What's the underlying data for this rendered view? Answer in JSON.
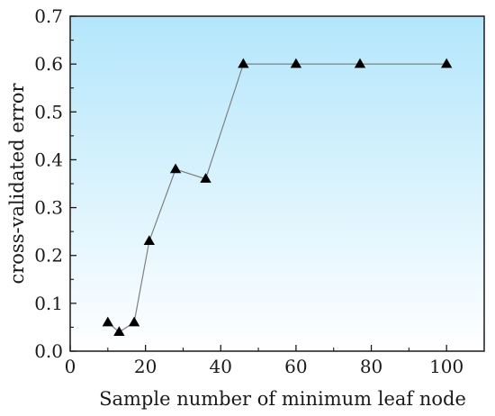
{
  "chart_data": {
    "type": "line",
    "title": "",
    "xlabel": "Sample number of minimum leaf node",
    "ylabel": "cross-validated error",
    "xlim": [
      0,
      110
    ],
    "ylim": [
      0.0,
      0.7
    ],
    "xticks": [
      0,
      20,
      40,
      60,
      80,
      100
    ],
    "yticks": [
      0.0,
      0.1,
      0.2,
      0.3,
      0.4,
      0.5,
      0.6,
      0.7
    ],
    "xtick_labels": [
      "0",
      "20",
      "40",
      "60",
      "80",
      "100"
    ],
    "ytick_labels": [
      "0.0",
      "0.1",
      "0.2",
      "0.3",
      "0.4",
      "0.5",
      "0.6",
      "0.7"
    ],
    "grid": false,
    "legend": "none",
    "background_gradient": [
      "#b3e6fb",
      "#ffffff"
    ],
    "line_color": "#808080",
    "marker": "triangle",
    "marker_color": "#000000",
    "series": [
      {
        "x": [
          10,
          13,
          17,
          21,
          28,
          36,
          46,
          60,
          77,
          100
        ],
        "y": [
          0.06,
          0.04,
          0.06,
          0.23,
          0.38,
          0.36,
          0.6,
          0.6,
          0.6,
          0.6
        ]
      }
    ]
  }
}
